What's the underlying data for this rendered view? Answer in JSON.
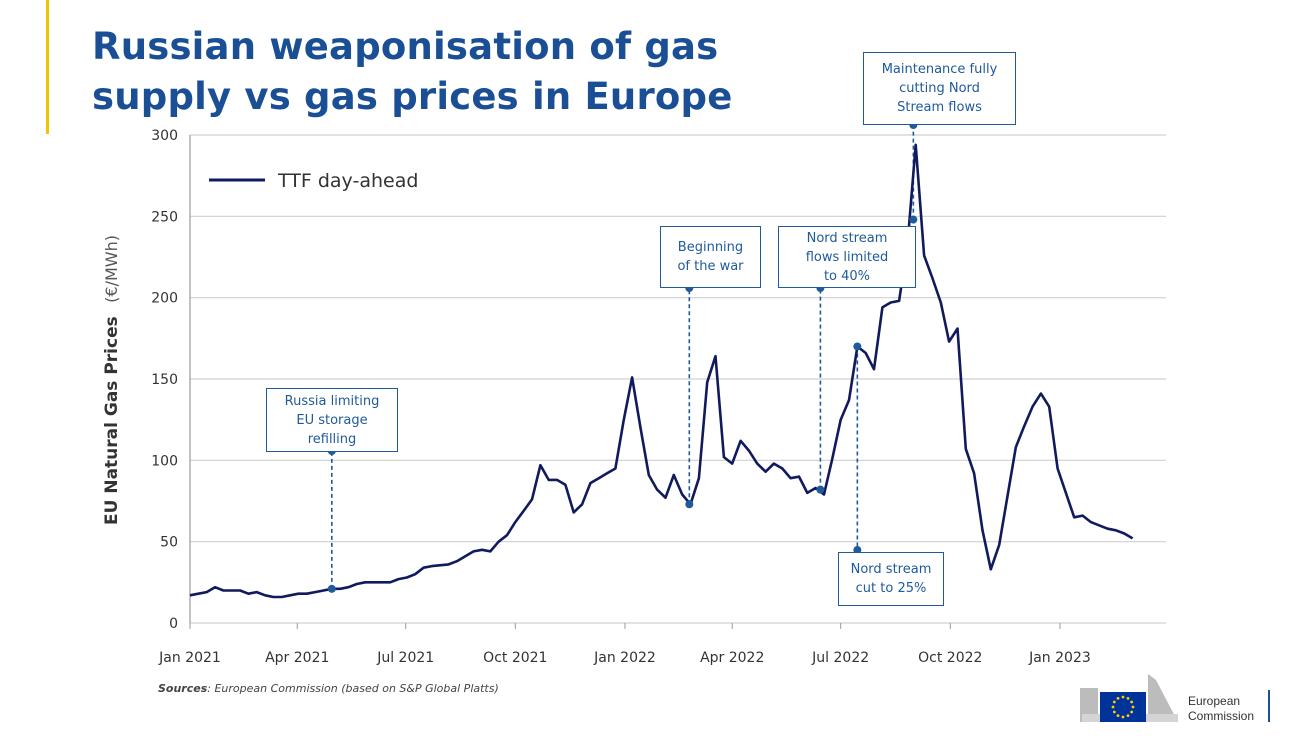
{
  "title": {
    "line1": "Russian weaponisation of gas",
    "line2": "supply vs gas prices in Europe"
  },
  "source": {
    "label": "Sources",
    "text": ": European Commission (based on S&P Global Platts)"
  },
  "logo": {
    "line1": "European",
    "line2": "Commission",
    "icon": "eu-flag-icon",
    "colors": {
      "blue": "#003399",
      "yellow": "#ffcc00"
    }
  },
  "colors": {
    "title": "#1a4f96",
    "line": "#101a5c",
    "annotation": "#1f5a9a",
    "accent": "#f5c400"
  },
  "chart_data": {
    "type": "line",
    "ylabel": "EU Natural Gas Prices",
    "yunit": "(€/MWh)",
    "ylim": [
      0,
      300
    ],
    "yticks": [
      0,
      50,
      100,
      150,
      200,
      250,
      300
    ],
    "xlim": [
      "2021-01-01",
      "2023-03-31"
    ],
    "xticks": [
      {
        "date": "2021-01-01",
        "label": "Jan 2021"
      },
      {
        "date": "2021-04-01",
        "label": "Apr 2021"
      },
      {
        "date": "2021-07-01",
        "label": "Jul 2021"
      },
      {
        "date": "2021-10-01",
        "label": "Oct 2021"
      },
      {
        "date": "2022-01-01",
        "label": "Jan 2022"
      },
      {
        "date": "2022-04-01",
        "label": "Apr 2022"
      },
      {
        "date": "2022-07-01",
        "label": "Jul 2022"
      },
      {
        "date": "2022-10-01",
        "label": "Oct 2022"
      },
      {
        "date": "2023-01-01",
        "label": "Jan 2023"
      }
    ],
    "grid": "horizontal",
    "legend_position": "top-left",
    "series": [
      {
        "name": "TTF day-ahead",
        "points": [
          [
            "2021-01-01",
            17
          ],
          [
            "2021-01-08",
            18
          ],
          [
            "2021-01-15",
            19
          ],
          [
            "2021-01-22",
            22
          ],
          [
            "2021-01-29",
            20
          ],
          [
            "2021-02-05",
            20
          ],
          [
            "2021-02-12",
            20
          ],
          [
            "2021-02-19",
            18
          ],
          [
            "2021-02-26",
            19
          ],
          [
            "2021-03-05",
            17
          ],
          [
            "2021-03-12",
            16
          ],
          [
            "2021-03-19",
            16
          ],
          [
            "2021-03-26",
            17
          ],
          [
            "2021-04-02",
            18
          ],
          [
            "2021-04-09",
            18
          ],
          [
            "2021-04-16",
            19
          ],
          [
            "2021-04-23",
            20
          ],
          [
            "2021-04-30",
            21
          ],
          [
            "2021-05-07",
            21
          ],
          [
            "2021-05-14",
            22
          ],
          [
            "2021-05-21",
            24
          ],
          [
            "2021-05-28",
            25
          ],
          [
            "2021-06-04",
            25
          ],
          [
            "2021-06-18",
            25
          ],
          [
            "2021-06-25",
            27
          ],
          [
            "2021-07-02",
            28
          ],
          [
            "2021-07-09",
            30
          ],
          [
            "2021-07-16",
            34
          ],
          [
            "2021-07-23",
            35
          ],
          [
            "2021-08-06",
            36
          ],
          [
            "2021-08-13",
            38
          ],
          [
            "2021-08-20",
            41
          ],
          [
            "2021-08-27",
            44
          ],
          [
            "2021-09-03",
            45
          ],
          [
            "2021-09-10",
            44
          ],
          [
            "2021-09-17",
            50
          ],
          [
            "2021-09-24",
            54
          ],
          [
            "2021-10-01",
            62
          ],
          [
            "2021-10-08",
            69
          ],
          [
            "2021-10-15",
            76
          ],
          [
            "2021-10-22",
            97
          ],
          [
            "2021-10-29",
            88
          ],
          [
            "2021-11-05",
            88
          ],
          [
            "2021-11-12",
            85
          ],
          [
            "2021-11-19",
            68
          ],
          [
            "2021-11-26",
            73
          ],
          [
            "2021-12-03",
            86
          ],
          [
            "2021-12-10",
            89
          ],
          [
            "2021-12-17",
            92
          ],
          [
            "2021-12-24",
            95
          ],
          [
            "2021-12-31",
            125
          ],
          [
            "2022-01-07",
            151
          ],
          [
            "2022-01-14",
            120
          ],
          [
            "2022-01-21",
            91
          ],
          [
            "2022-01-28",
            82
          ],
          [
            "2022-02-04",
            77
          ],
          [
            "2022-02-11",
            91
          ],
          [
            "2022-02-18",
            79
          ],
          [
            "2022-02-25",
            73
          ],
          [
            "2022-03-04",
            89
          ],
          [
            "2022-03-11",
            148
          ],
          [
            "2022-03-18",
            164
          ],
          [
            "2022-03-25",
            102
          ],
          [
            "2022-04-01",
            98
          ],
          [
            "2022-04-08",
            112
          ],
          [
            "2022-04-15",
            106
          ],
          [
            "2022-04-22",
            98
          ],
          [
            "2022-04-29",
            93
          ],
          [
            "2022-05-06",
            98
          ],
          [
            "2022-05-13",
            95
          ],
          [
            "2022-05-20",
            89
          ],
          [
            "2022-05-27",
            90
          ],
          [
            "2022-06-03",
            80
          ],
          [
            "2022-06-10",
            83
          ],
          [
            "2022-06-17",
            79
          ],
          [
            "2022-06-24",
            101
          ],
          [
            "2022-07-01",
            125
          ],
          [
            "2022-07-08",
            137
          ],
          [
            "2022-07-15",
            170
          ],
          [
            "2022-07-22",
            166
          ],
          [
            "2022-07-29",
            156
          ],
          [
            "2022-08-05",
            194
          ],
          [
            "2022-08-12",
            197
          ],
          [
            "2022-08-19",
            198
          ],
          [
            "2022-08-26",
            232
          ],
          [
            "2022-09-02",
            294
          ],
          [
            "2022-09-09",
            226
          ],
          [
            "2022-09-16",
            212
          ],
          [
            "2022-09-23",
            197
          ],
          [
            "2022-09-30",
            173
          ],
          [
            "2022-10-07",
            181
          ],
          [
            "2022-10-14",
            107
          ],
          [
            "2022-10-21",
            92
          ],
          [
            "2022-10-28",
            57
          ],
          [
            "2022-11-04",
            33
          ],
          [
            "2022-11-11",
            48
          ],
          [
            "2022-11-18",
            78
          ],
          [
            "2022-11-25",
            108
          ],
          [
            "2022-12-02",
            121
          ],
          [
            "2022-12-09",
            133
          ],
          [
            "2022-12-16",
            141
          ],
          [
            "2022-12-23",
            133
          ],
          [
            "2022-12-30",
            95
          ],
          [
            "2023-01-06",
            80
          ],
          [
            "2023-01-13",
            65
          ],
          [
            "2023-01-20",
            66
          ],
          [
            "2023-01-27",
            62
          ],
          [
            "2023-02-03",
            60
          ],
          [
            "2023-02-10",
            58
          ],
          [
            "2023-02-17",
            57
          ],
          [
            "2023-02-24",
            55
          ],
          [
            "2023-03-03",
            52
          ]
        ]
      }
    ],
    "annotations": [
      {
        "text": "Russia limiting\nEU storage\nrefilling",
        "date": "2021-04-30",
        "value": 21,
        "box": "above"
      },
      {
        "text": "Beginning\nof the war",
        "date": "2022-02-24",
        "value": 73,
        "box": "above"
      },
      {
        "text": "Nord stream\nflows limited\nto 40%",
        "date": "2022-06-14",
        "value": 82,
        "box": "above"
      },
      {
        "text": "Nord stream\ncut to 25%",
        "date": "2022-07-15",
        "value": 170,
        "box": "below"
      },
      {
        "text": "Maintenance fully\ncutting Nord\nStream flows",
        "date": "2022-08-31",
        "value": 248,
        "box": "above"
      }
    ]
  }
}
